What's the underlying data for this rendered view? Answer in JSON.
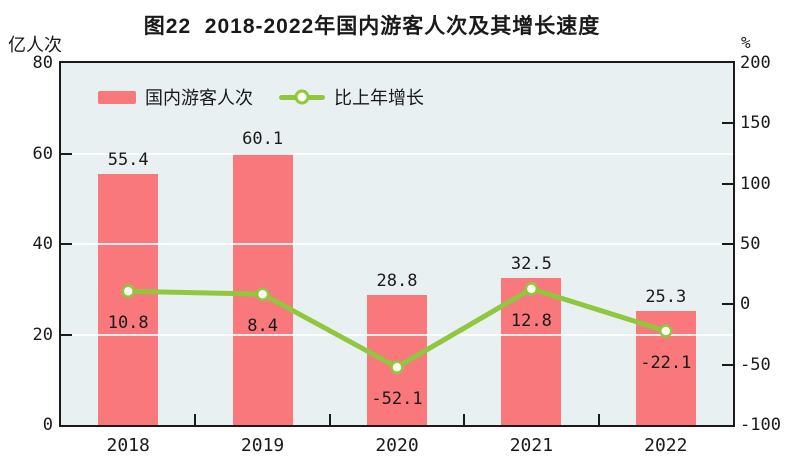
{
  "title": "图22  2018-2022年国内游客人次及其增长速度",
  "left_axis": {
    "unit": "亿人次",
    "ticks": [
      0,
      20,
      40,
      60,
      80
    ]
  },
  "right_axis": {
    "unit": "%",
    "ticks": [
      -100,
      -50,
      0,
      50,
      100,
      150,
      200
    ]
  },
  "legend": [
    {
      "label": "国内游客人次",
      "type": "bar"
    },
    {
      "label": "比上年增长",
      "type": "line"
    }
  ],
  "colors": {
    "bar": "#f8787c",
    "line": "#90c73e",
    "marker_fill": "#fdfdf2",
    "plot_bg": "#e9f0f1",
    "grid": "rgba(255,255,255,0.85)",
    "axis": "#1a1a1a",
    "text": "#1a1a1a"
  },
  "chart_data": {
    "type": "bar",
    "title": "图22  2018-2022年国内游客人次及其增长速度",
    "categories": [
      "2018",
      "2019",
      "2020",
      "2021",
      "2022"
    ],
    "series": [
      {
        "name": "国内游客人次",
        "type": "bar",
        "axis": "left",
        "values": [
          55.4,
          60.1,
          28.8,
          32.5,
          25.3
        ]
      },
      {
        "name": "比上年增长",
        "type": "line",
        "axis": "right",
        "values": [
          10.8,
          8.4,
          -52.1,
          12.8,
          -22.1
        ]
      }
    ],
    "xlabel": "",
    "ylabel_left": "亿人次",
    "ylabel_right": "%",
    "left_ylim": [
      0,
      80
    ],
    "right_ylim": [
      -100,
      200
    ],
    "grid": true,
    "legend_position": "top-left-inside"
  }
}
